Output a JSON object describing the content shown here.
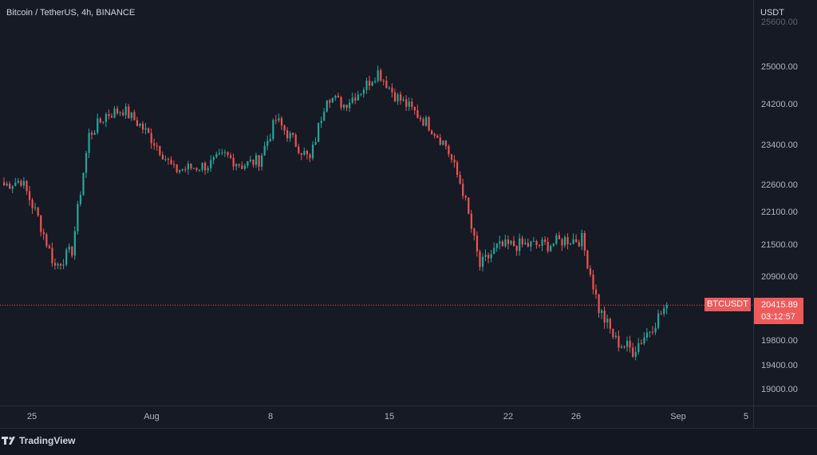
{
  "header": {
    "title": "Bitcoin / TetherUS, 4h, BINANCE"
  },
  "price_axis": {
    "unit": "USDT",
    "ticks": [
      "25600.00",
      "25000.00",
      "24200.00",
      "23400.00",
      "22600.00",
      "22100.00",
      "21500.00",
      "20900.00",
      "19800.00",
      "19400.00",
      "19000.00"
    ]
  },
  "time_axis": {
    "ticks": [
      "25",
      "Aug",
      "8",
      "15",
      "22",
      "26",
      "Sep",
      "5"
    ]
  },
  "last_price": {
    "symbol": "BTCUSDT",
    "price": "20415.89",
    "countdown": "03:12:57"
  },
  "footer": {
    "brand": "TradingView",
    "logo_icon": "tradingview-logo-icon"
  },
  "colors": {
    "up": "#26a69a",
    "down": "#ef5350",
    "background": "#161a25",
    "price_line": "#f15a5a"
  },
  "chart_data": {
    "type": "candlestick",
    "interval": "4h",
    "ylim": [
      18700,
      25700
    ],
    "grid": false,
    "x_ticks": [
      "25",
      "Aug",
      "8",
      "15",
      "22",
      "26",
      "Sep",
      "5"
    ],
    "last_price": 20415.89,
    "path": [
      [
        "Jul 23",
        22600
      ],
      [
        "Jul 24",
        22700
      ],
      [
        "Jul 25",
        22000
      ],
      [
        "Jul 26",
        21100
      ],
      [
        "Jul 27",
        21400
      ],
      [
        "Jul 28",
        23600
      ],
      [
        "Jul 29",
        24000
      ],
      [
        "Jul 30",
        24100
      ],
      [
        "Jul 31",
        23800
      ],
      [
        "Aug 1",
        23400
      ],
      [
        "Aug 2",
        22900
      ],
      [
        "Aug 3",
        22950
      ],
      [
        "Aug 4",
        23000
      ],
      [
        "Aug 5",
        23200
      ],
      [
        "Aug 6",
        23000
      ],
      [
        "Aug 7",
        23100
      ],
      [
        "Aug 8",
        23900
      ],
      [
        "Aug 9",
        23500
      ],
      [
        "Aug 10",
        23100
      ],
      [
        "Aug 11",
        24400
      ],
      [
        "Aug 12",
        24200
      ],
      [
        "Aug 13",
        24500
      ],
      [
        "Aug 14",
        24900
      ],
      [
        "Aug 15",
        24400
      ],
      [
        "Aug 16",
        24100
      ],
      [
        "Aug 17",
        23800
      ],
      [
        "Aug 18",
        23400
      ],
      [
        "Aug 19",
        22500
      ],
      [
        "Aug 20",
        21100
      ],
      [
        "Aug 21",
        21450
      ],
      [
        "Aug 22",
        21500
      ],
      [
        "Aug 23",
        21500
      ],
      [
        "Aug 24",
        21500
      ],
      [
        "Aug 25",
        21600
      ],
      [
        "Aug 26",
        21600
      ],
      [
        "Aug 27",
        20350
      ],
      [
        "Aug 28",
        19800
      ],
      [
        "Aug 29",
        19650
      ],
      [
        "Aug 30",
        20000
      ],
      [
        "Aug 31",
        20415.89
      ]
    ]
  }
}
